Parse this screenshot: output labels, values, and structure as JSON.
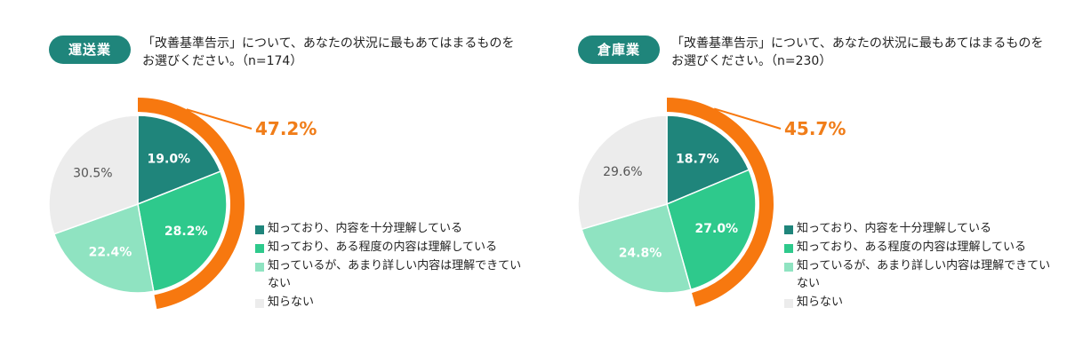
{
  "colors": {
    "accent_pill": "#1f857b",
    "highlight_ring": "#f7780f",
    "highlight_text": "#f07d19",
    "slices": [
      "#1f857b",
      "#2ec98c",
      "#8fe3c1",
      "#ececec"
    ]
  },
  "legend": [
    "知っており、内容を十分理解している",
    "知っており、ある程度の内容は理解している",
    "知っているが、あまり詳しい内容は理解できていない",
    "知らない"
  ],
  "panels": [
    {
      "tag": "運送業",
      "question": "「改善基準告示」について、あなたの状況に最もあてはまるものをお選びください。（n=174）",
      "highlight_label": "47.2%"
    },
    {
      "tag": "倉庫業",
      "question": "「改善基準告示」について、あなたの状況に最もあてはまるものをお選びください。（n=230）",
      "highlight_label": "45.7%"
    }
  ],
  "chart_data": [
    {
      "type": "pie",
      "categories": [
        "知っており、内容を十分理解している",
        "知っており、ある程度の内容は理解している",
        "知っているが、あまり詳しい内容は理解できていない",
        "知らない"
      ],
      "values": [
        19.0,
        28.2,
        22.4,
        30.5
      ],
      "value_labels": [
        "19.0%",
        "28.2%",
        "22.4%",
        "30.5%"
      ],
      "highlight_total": 47.2,
      "legend_position": "right"
    },
    {
      "type": "pie",
      "categories": [
        "知っており、内容を十分理解している",
        "知っており、ある程度の内容は理解している",
        "知っているが、あまり詳しい内容は理解できていない",
        "知らない"
      ],
      "values": [
        18.7,
        27.0,
        24.8,
        29.6
      ],
      "value_labels": [
        "18.7%",
        "27.0%",
        "24.8%",
        "29.6%"
      ],
      "highlight_total": 45.7,
      "legend_position": "right"
    }
  ]
}
